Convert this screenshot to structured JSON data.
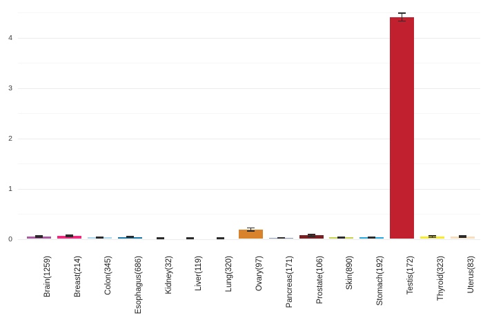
{
  "chart_data": {
    "type": "bar",
    "title": "",
    "xlabel": "",
    "ylabel": "",
    "legend": "none",
    "background": "#ffffff",
    "categories": [
      "Brain(1259)",
      "Breast(214)",
      "Colon(345)",
      "Esophagus(686)",
      "Kidney(32)",
      "Liver(119)",
      "Lung(320)",
      "Ovary(97)",
      "Pancreas(171)",
      "Prostate(106)",
      "Skin(890)",
      "Stomach(192)",
      "Testis(172)",
      "Thyroid(323)",
      "Uterus(83)"
    ],
    "values": [
      0.05,
      0.06,
      0.03,
      0.04,
      0.02,
      0.02,
      0.02,
      0.19,
      0.02,
      0.07,
      0.03,
      0.03,
      4.41,
      0.045,
      0.05
    ],
    "errors": [
      0.012,
      0.015,
      0.01,
      0.01,
      0.01,
      0.01,
      0.01,
      0.03,
      0.008,
      0.02,
      0.01,
      0.01,
      0.08,
      0.015,
      0.015
    ],
    "bar_colors": [
      "#ae58a3",
      "#ee2a7c",
      "#a9d7f0",
      "#1478ae",
      "#ffffff",
      "#ffffff",
      "#ffffff",
      "#d9822c",
      "#8193c7",
      "#7a1f22",
      "#c6d24a",
      "#23a7e0",
      "#c1202f",
      "#f8ec30",
      "#f8debc"
    ],
    "error_color": "#2b2b2b",
    "yticks": [
      0,
      1,
      2,
      3,
      4
    ],
    "ylim": [
      0,
      4.64
    ],
    "grid": "horizontal lines every 0.5 from 0 to 4.5, light gray, no axis lines, no ticks"
  }
}
